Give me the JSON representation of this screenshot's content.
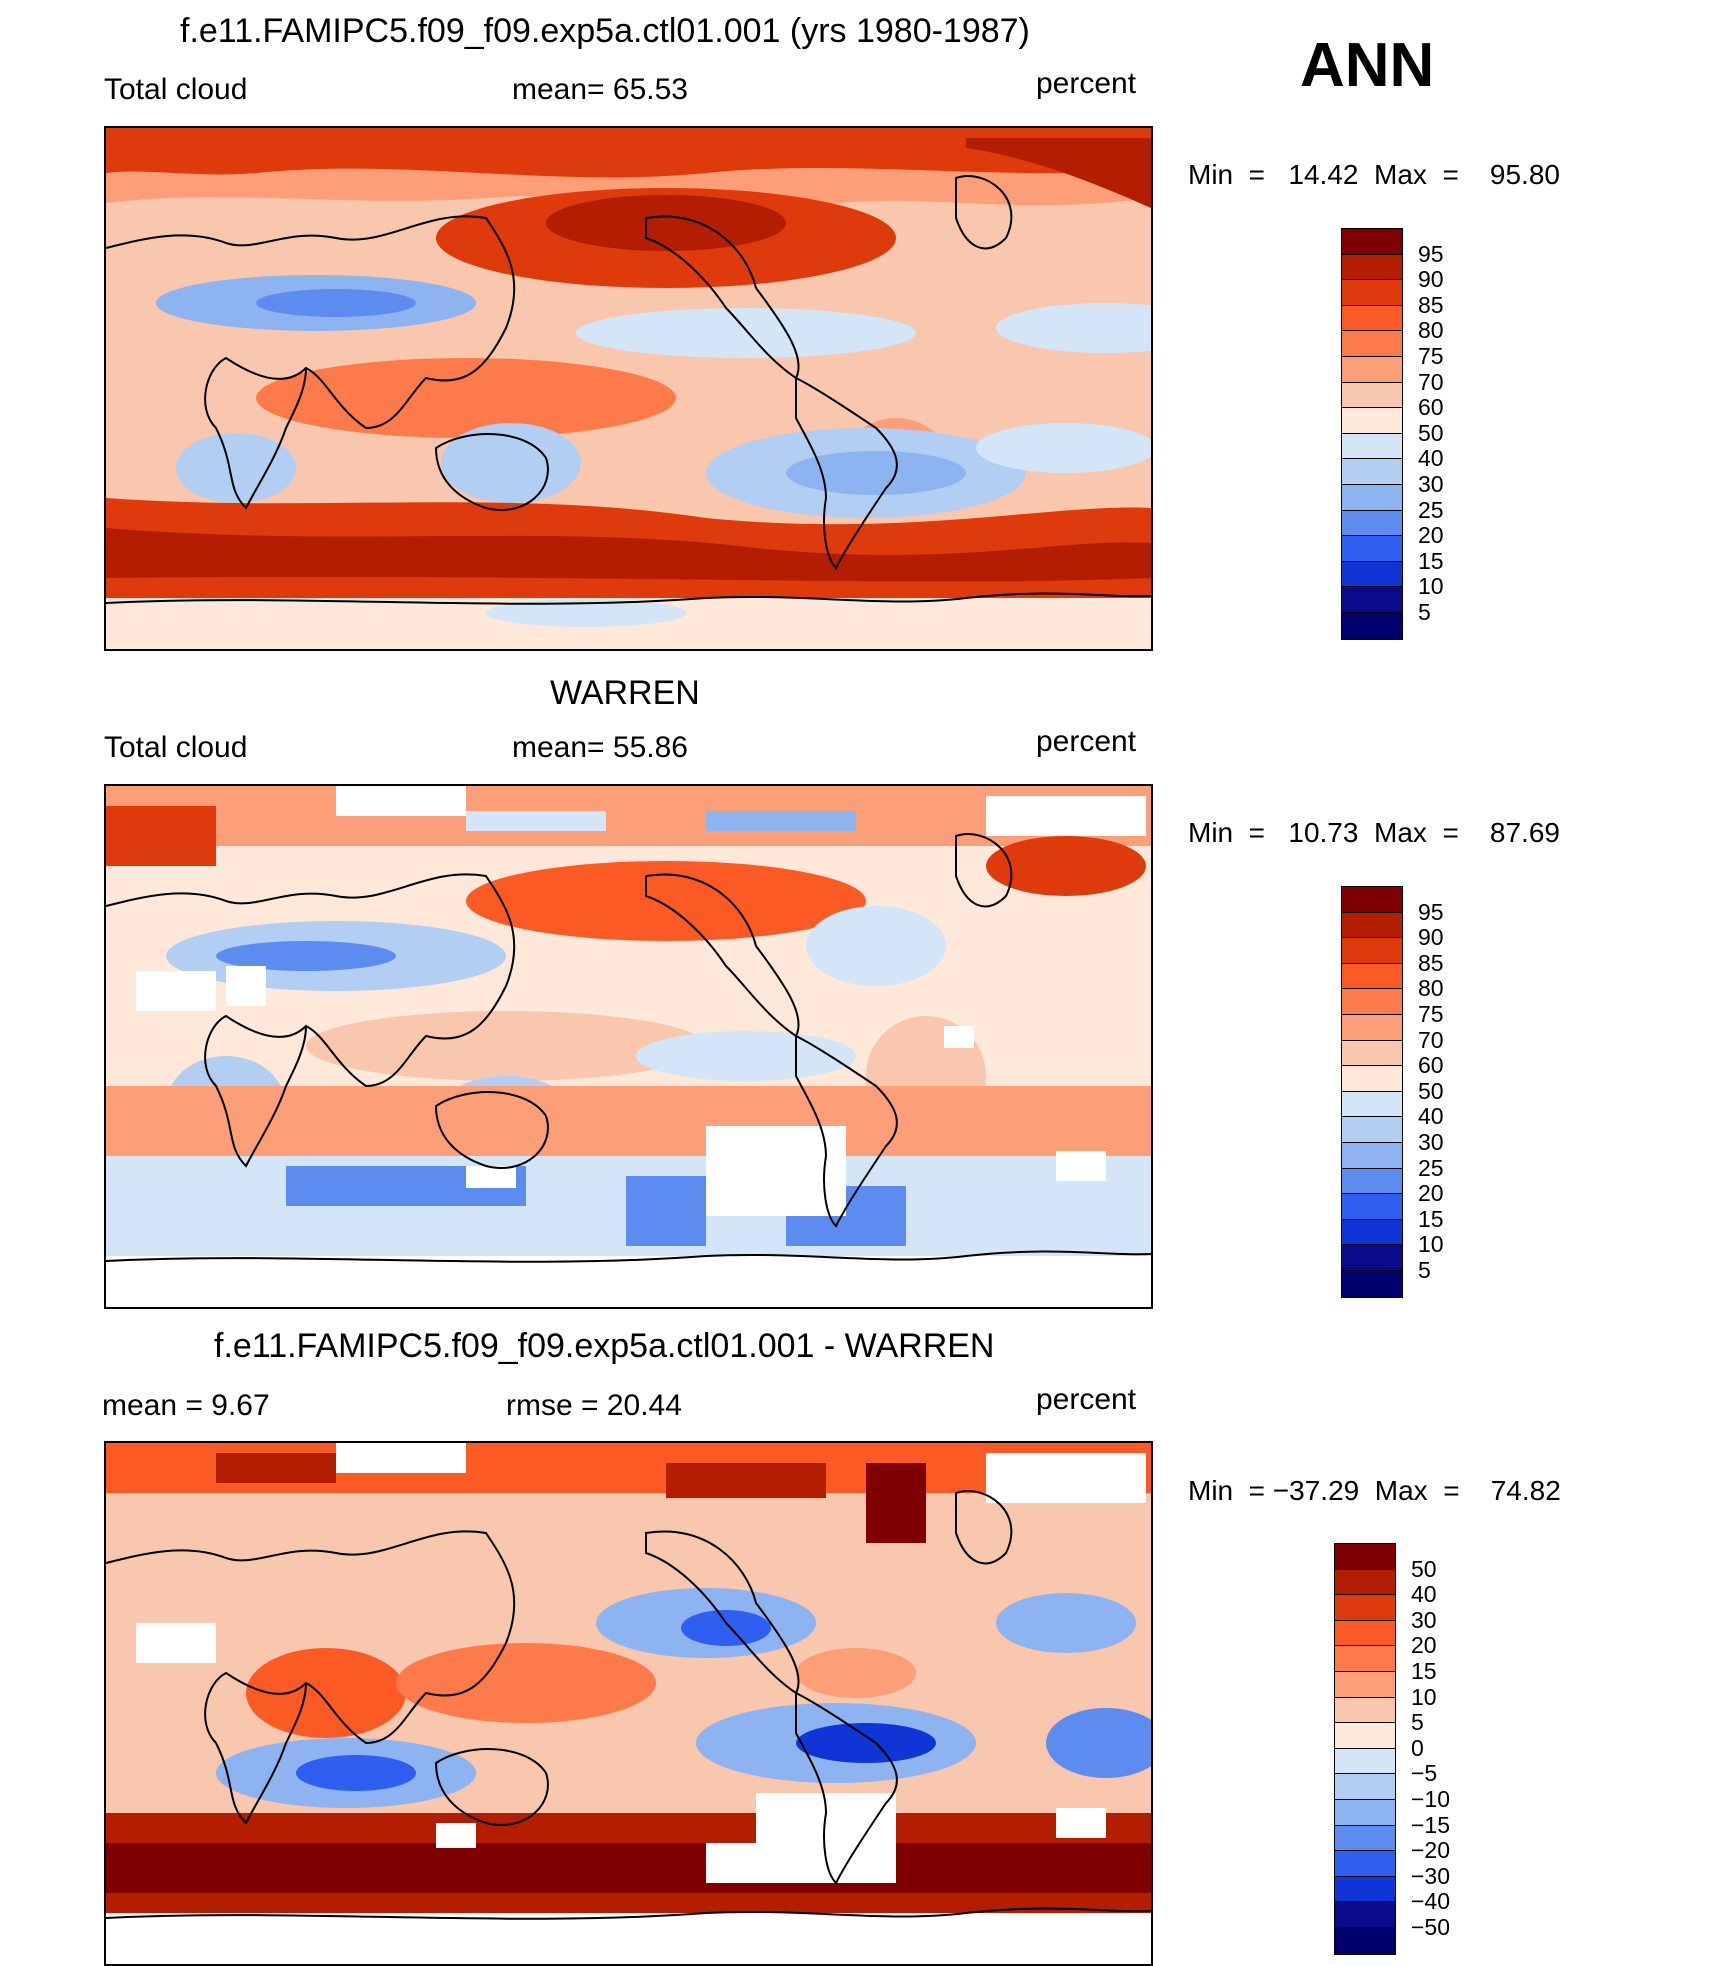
{
  "season": "ANN",
  "panels": [
    {
      "id": "model",
      "title": "f.e11.FAMIPC5.f09_f09.exp5a.ctl01.001 (yrs 1980-1987)",
      "left_label": "Total cloud",
      "center_label": "mean=   65.53",
      "units": "percent",
      "min_max": "Min  =   14.42  Max  =    95.80",
      "colorbar_ticks": [
        "95",
        "90",
        "85",
        "80",
        "75",
        "70",
        "60",
        "50",
        "40",
        "30",
        "25",
        "20",
        "15",
        "10",
        "5"
      ]
    },
    {
      "id": "obs",
      "title": "WARREN",
      "left_label": "Total cloud",
      "center_label": "mean=   55.86",
      "units": "percent",
      "min_max": "Min  =   10.73  Max  =    87.69",
      "colorbar_ticks": [
        "95",
        "90",
        "85",
        "80",
        "75",
        "70",
        "60",
        "50",
        "40",
        "30",
        "25",
        "20",
        "15",
        "10",
        "5"
      ]
    },
    {
      "id": "diff",
      "title": "f.e11.FAMIPC5.f09_f09.exp5a.ctl01.001 - WARREN",
      "left_label": "mean  =     9.67",
      "center_label": "rmse  =    20.44",
      "units": "percent",
      "min_max": "Min  = −37.29  Max  =    74.82",
      "colorbar_ticks": [
        "50",
        "40",
        "30",
        "20",
        "15",
        "10",
        "5",
        "0",
        "−5",
        "−10",
        "−15",
        "−20",
        "−30",
        "−40",
        "−50"
      ]
    }
  ],
  "colors": {
    "abs_scale": [
      "#7f0000",
      "#b31d02",
      "#de3a0b",
      "#fb5a24",
      "#fd7b4a",
      "#fc9f78",
      "#f8c7ae",
      "#fde8d9",
      "#d3e5f7",
      "#b2cef3",
      "#8eb3f1",
      "#5d8cf0",
      "#2e5ff0",
      "#1035d6",
      "#0a0a8c"
    ],
    "diff_scale": [
      "#7f0000",
      "#b31d02",
      "#de3a0b",
      "#fb5a24",
      "#fd7b4a",
      "#fc9f78",
      "#f8c7ae",
      "#fde8d9",
      "#d3e5f7",
      "#b2cef3",
      "#8eb3f1",
      "#5d8cf0",
      "#2e5ff0",
      "#1035d6",
      "#0a0a8c"
    ]
  }
}
